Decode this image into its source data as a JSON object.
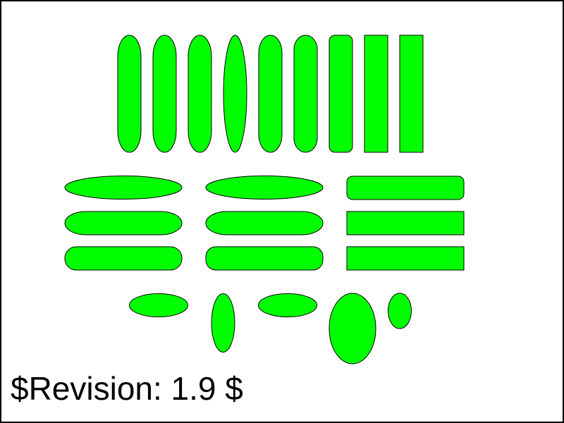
{
  "revision_label": "$Revision: 1.9 $",
  "colors": {
    "shape_fill": "#00ff00",
    "shape_stroke": "#000000",
    "frame_stroke": "#000000",
    "background": "#ffffff"
  }
}
